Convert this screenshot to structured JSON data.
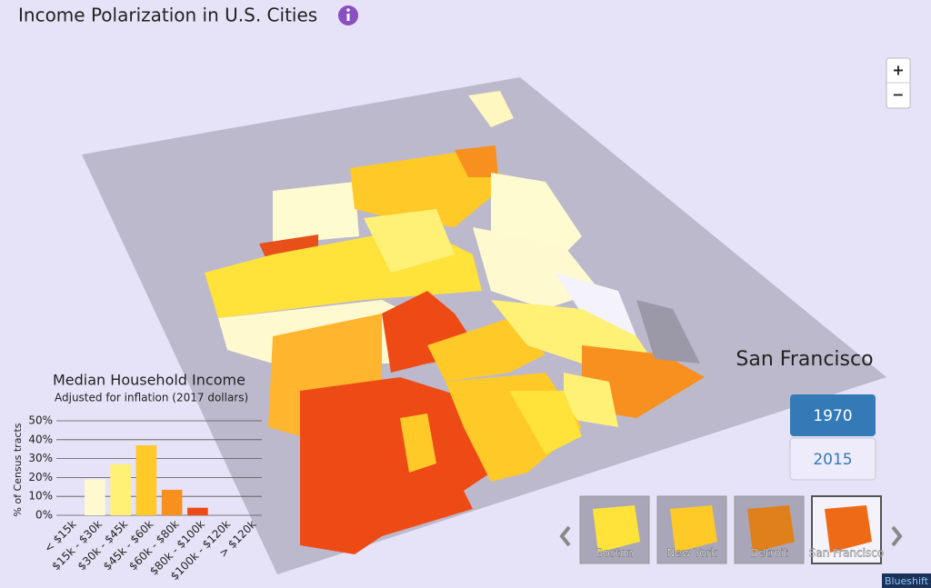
{
  "header": {
    "title": "Income Polarization in U.S. Cities"
  },
  "chart_data": {
    "type": "bar",
    "title": "Median Household Income",
    "subtitle": "Adjusted for inflation (2017 dollars)",
    "y_label": "% of Census tracts",
    "categories": [
      "< $15k",
      "$15k - $30k",
      "$30k - $45k",
      "$45k - $60k",
      "$60k - $80k",
      "$80k - $100k",
      "$100k - $120k",
      "> $120k"
    ],
    "values": [
      0,
      19,
      27,
      37,
      13.5,
      4,
      0,
      0
    ],
    "colors": [
      "#fffbe0",
      "#fff9d0",
      "#fff176",
      "#ffc928",
      "#f7901e",
      "#ee4a16",
      "#d83a10",
      "#c02a08"
    ],
    "ylim": [
      0,
      50
    ],
    "yticks": [
      {
        "value": 0,
        "label": "0%"
      },
      {
        "value": 10,
        "label": "10%"
      },
      {
        "value": 20,
        "label": "20%"
      },
      {
        "value": 30,
        "label": "30%"
      },
      {
        "value": 40,
        "label": "40%"
      },
      {
        "value": 50,
        "label": "50%"
      }
    ],
    "grid": true
  },
  "city": "San Francisco",
  "years": [
    "1970",
    "2015"
  ],
  "thumbnails": [
    "Boston",
    "New York",
    "Detroit",
    "San Francisco"
  ],
  "zoom": [
    "+",
    "−"
  ],
  "footer": "Blueshift"
}
